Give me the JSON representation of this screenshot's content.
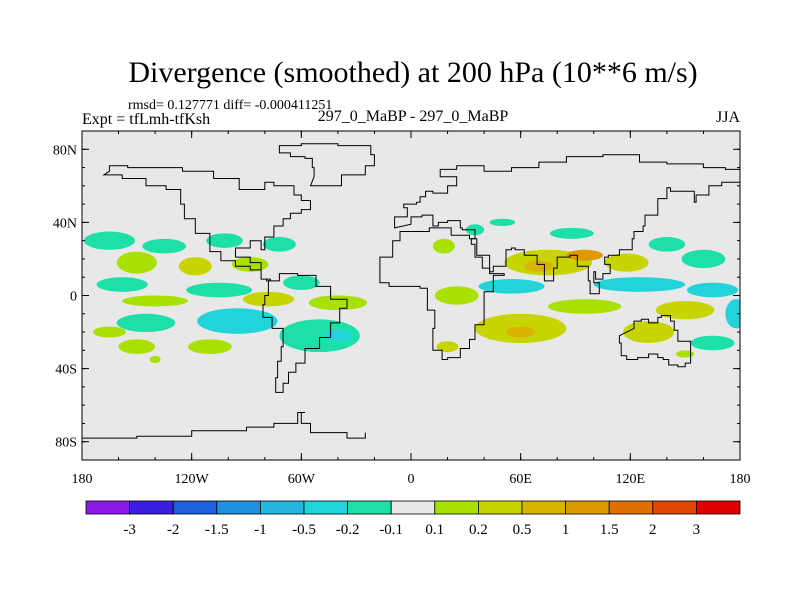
{
  "chart_data": {
    "type": "heatmap",
    "title": "Divergence (smoothed) at 200 hPa (10**6 m/s)",
    "stats_line": "rmsd= 0.127771 diff= -0.000411251",
    "expt_label": "Expt = tfLmh-tfKsh",
    "case_label": "297_0_MaBP - 297_0_MaBP",
    "season": "JJA",
    "x_range": [
      -180,
      180
    ],
    "y_range": [
      -90,
      90
    ],
    "x_ticks": [
      {
        "value": -180,
        "label": "180"
      },
      {
        "value": -120,
        "label": "120W"
      },
      {
        "value": -60,
        "label": "60W"
      },
      {
        "value": 0,
        "label": "0"
      },
      {
        "value": 60,
        "label": "60E"
      },
      {
        "value": 120,
        "label": "120E"
      },
      {
        "value": 180,
        "label": "180"
      }
    ],
    "y_ticks": [
      {
        "value": 80,
        "label": "80N"
      },
      {
        "value": 40,
        "label": "40N"
      },
      {
        "value": 0,
        "label": "0"
      },
      {
        "value": -40,
        "label": "40S"
      },
      {
        "value": -80,
        "label": "80S"
      }
    ],
    "colorbar": {
      "colors": [
        "#8b1ae8",
        "#3b1fe0",
        "#1f5fe0",
        "#1f8fe0",
        "#22b6e0",
        "#22d4d9",
        "#1de0a8",
        "#e8e8e8",
        "#a8e000",
        "#c8d400",
        "#d8b400",
        "#e09800",
        "#e07000",
        "#e04800",
        "#e00000"
      ],
      "labels": [
        "-3",
        "-2",
        "-1.5",
        "-1",
        "-0.5",
        "-0.2",
        "-0.1",
        "0.1",
        "0.2",
        "0.5",
        "1",
        "1.5",
        "2",
        "3"
      ]
    },
    "blobs": [
      {
        "lon": -165,
        "lat": 30,
        "rlon": 14,
        "rlat": 5,
        "level": 6
      },
      {
        "lon": -135,
        "lat": 27,
        "rlon": 12,
        "rlat": 4,
        "level": 6
      },
      {
        "lon": -102,
        "lat": 30,
        "rlon": 10,
        "rlat": 4,
        "level": 6
      },
      {
        "lon": -72,
        "lat": 28,
        "rlon": 9,
        "rlat": 4,
        "level": 6
      },
      {
        "lon": -150,
        "lat": 18,
        "rlon": 11,
        "rlat": 6,
        "level": 8
      },
      {
        "lon": -118,
        "lat": 16,
        "rlon": 9,
        "rlat": 5,
        "level": 9
      },
      {
        "lon": -88,
        "lat": 17,
        "rlon": 10,
        "rlat": 4,
        "level": 8
      },
      {
        "lon": -158,
        "lat": 6,
        "rlon": 14,
        "rlat": 4,
        "level": 6
      },
      {
        "lon": -105,
        "lat": 3,
        "rlon": 18,
        "rlat": 4,
        "level": 6
      },
      {
        "lon": -60,
        "lat": 7,
        "rlon": 10,
        "rlat": 4,
        "level": 6
      },
      {
        "lon": -140,
        "lat": -3,
        "rlon": 18,
        "rlat": 3,
        "level": 8
      },
      {
        "lon": -78,
        "lat": -2,
        "rlon": 14,
        "rlat": 4,
        "level": 9
      },
      {
        "lon": -40,
        "lat": -4,
        "rlon": 16,
        "rlat": 4,
        "level": 8
      },
      {
        "lon": -145,
        "lat": -15,
        "rlon": 16,
        "rlat": 5,
        "level": 6
      },
      {
        "lon": -95,
        "lat": -14,
        "rlon": 22,
        "rlat": 7,
        "level": 5
      },
      {
        "lon": -50,
        "lat": -22,
        "rlon": 22,
        "rlat": 9,
        "level": 6
      },
      {
        "lon": -40,
        "lat": -22,
        "rlon": 8,
        "rlat": 3,
        "level": 5
      },
      {
        "lon": -150,
        "lat": -28,
        "rlon": 10,
        "rlat": 4,
        "level": 8
      },
      {
        "lon": -110,
        "lat": -28,
        "rlon": 12,
        "rlat": 4,
        "level": 8
      },
      {
        "lon": -165,
        "lat": -20,
        "rlon": 9,
        "rlat": 3,
        "level": 8
      },
      {
        "lon": 18,
        "lat": 27,
        "rlon": 6,
        "rlat": 4,
        "level": 8
      },
      {
        "lon": 35,
        "lat": 36,
        "rlon": 5,
        "rlat": 3,
        "level": 6
      },
      {
        "lon": 50,
        "lat": 40,
        "rlon": 7,
        "rlat": 2,
        "level": 6
      },
      {
        "lon": 88,
        "lat": 34,
        "rlon": 12,
        "rlat": 3,
        "level": 6
      },
      {
        "lon": 75,
        "lat": 18,
        "rlon": 24,
        "rlat": 7,
        "level": 9
      },
      {
        "lon": 70,
        "lat": 16,
        "rlon": 8,
        "rlat": 3,
        "level": 10
      },
      {
        "lon": 118,
        "lat": 18,
        "rlon": 12,
        "rlat": 5,
        "level": 9
      },
      {
        "lon": 140,
        "lat": 28,
        "rlon": 10,
        "rlat": 4,
        "level": 6
      },
      {
        "lon": 160,
        "lat": 20,
        "rlon": 12,
        "rlat": 5,
        "level": 6
      },
      {
        "lon": 55,
        "lat": 5,
        "rlon": 18,
        "rlat": 4,
        "level": 5
      },
      {
        "lon": 125,
        "lat": 6,
        "rlon": 25,
        "rlat": 4,
        "level": 5
      },
      {
        "lon": 165,
        "lat": 3,
        "rlon": 14,
        "rlat": 4,
        "level": 5
      },
      {
        "lon": 25,
        "lat": 0,
        "rlon": 12,
        "rlat": 5,
        "level": 8
      },
      {
        "lon": 95,
        "lat": -6,
        "rlon": 20,
        "rlat": 4,
        "level": 8
      },
      {
        "lon": 150,
        "lat": -8,
        "rlon": 16,
        "rlat": 5,
        "level": 9
      },
      {
        "lon": 60,
        "lat": -18,
        "rlon": 25,
        "rlat": 8,
        "level": 9
      },
      {
        "lon": 60,
        "lat": -20,
        "rlon": 8,
        "rlat": 3,
        "level": 10
      },
      {
        "lon": 130,
        "lat": -20,
        "rlon": 14,
        "rlat": 6,
        "level": 9
      },
      {
        "lon": 165,
        "lat": -26,
        "rlon": 12,
        "rlat": 4,
        "level": 6
      },
      {
        "lon": 178,
        "lat": -10,
        "rlon": 6,
        "rlat": 8,
        "level": 5
      },
      {
        "lon": 20,
        "lat": -28,
        "rlon": 6,
        "rlat": 3,
        "level": 9
      },
      {
        "lon": 150,
        "lat": -32,
        "rlon": 5,
        "rlat": 2,
        "level": 8
      },
      {
        "lon": -140,
        "lat": -35,
        "rlon": 3,
        "rlat": 2,
        "level": 8
      },
      {
        "lon": 95,
        "lat": 22,
        "rlon": 10,
        "rlat": 3,
        "level": 11
      }
    ],
    "coast_outlines": [
      {
        "name": "north-america",
        "points": [
          [
            -168,
            66
          ],
          [
            -158,
            64
          ],
          [
            -145,
            60
          ],
          [
            -134,
            58
          ],
          [
            -126,
            50
          ],
          [
            -124,
            42
          ],
          [
            -118,
            34
          ],
          [
            -110,
            24
          ],
          [
            -104,
            19
          ],
          [
            -96,
            16
          ],
          [
            -88,
            14
          ],
          [
            -82,
            9
          ],
          [
            -77,
            8
          ],
          [
            -79,
            9
          ],
          [
            -82,
            18
          ],
          [
            -88,
            21
          ],
          [
            -96,
            26
          ],
          [
            -88,
            30
          ],
          [
            -82,
            25
          ],
          [
            -80,
            27
          ],
          [
            -80,
            32
          ],
          [
            -75,
            38
          ],
          [
            -70,
            42
          ],
          [
            -66,
            45
          ],
          [
            -60,
            47
          ],
          [
            -55,
            52
          ],
          [
            -60,
            55
          ],
          [
            -64,
            60
          ],
          [
            -75,
            62
          ],
          [
            -80,
            58
          ],
          [
            -90,
            58
          ],
          [
            -94,
            64
          ],
          [
            -108,
            68
          ],
          [
            -125,
            70
          ],
          [
            -140,
            70
          ],
          [
            -155,
            71
          ],
          [
            -165,
            68
          ]
        ]
      },
      {
        "name": "south-america",
        "points": [
          [
            -78,
            8
          ],
          [
            -72,
            12
          ],
          [
            -62,
            11
          ],
          [
            -52,
            5
          ],
          [
            -44,
            -2
          ],
          [
            -35,
            -7
          ],
          [
            -39,
            -15
          ],
          [
            -44,
            -23
          ],
          [
            -50,
            -29
          ],
          [
            -58,
            -37
          ],
          [
            -63,
            -42
          ],
          [
            -67,
            -48
          ],
          [
            -70,
            -53
          ],
          [
            -74,
            -52
          ],
          [
            -74,
            -45
          ],
          [
            -73,
            -36
          ],
          [
            -71,
            -28
          ],
          [
            -70,
            -18
          ],
          [
            -76,
            -12
          ],
          [
            -81,
            -5
          ],
          [
            -80,
            0
          ],
          [
            -78,
            2
          ]
        ]
      },
      {
        "name": "africa",
        "points": [
          [
            -17,
            21
          ],
          [
            -10,
            30
          ],
          [
            -6,
            35
          ],
          [
            10,
            37
          ],
          [
            22,
            33
          ],
          [
            32,
            31
          ],
          [
            36,
            22
          ],
          [
            43,
            12
          ],
          [
            51,
            11
          ],
          [
            45,
            2
          ],
          [
            40,
            -4
          ],
          [
            40,
            -16
          ],
          [
            35,
            -24
          ],
          [
            32,
            -29
          ],
          [
            27,
            -34
          ],
          [
            20,
            -35
          ],
          [
            17,
            -30
          ],
          [
            12,
            -18
          ],
          [
            13,
            -8
          ],
          [
            9,
            -1
          ],
          [
            9,
            4
          ],
          [
            5,
            5
          ],
          [
            -4,
            5
          ],
          [
            -12,
            7
          ],
          [
            -17,
            14
          ]
        ]
      },
      {
        "name": "eurasia",
        "points": [
          [
            -9,
            37
          ],
          [
            -9,
            43
          ],
          [
            -2,
            48
          ],
          [
            -4,
            50
          ],
          [
            3,
            51
          ],
          [
            5,
            54
          ],
          [
            8,
            57
          ],
          [
            12,
            56
          ],
          [
            20,
            60
          ],
          [
            25,
            65
          ],
          [
            16,
            69
          ],
          [
            25,
            71
          ],
          [
            40,
            68
          ],
          [
            55,
            70
          ],
          [
            70,
            73
          ],
          [
            85,
            76
          ],
          [
            105,
            77
          ],
          [
            125,
            73
          ],
          [
            140,
            72
          ],
          [
            160,
            70
          ],
          [
            172,
            69
          ],
          [
            180,
            67
          ],
          [
            180,
            62
          ],
          [
            170,
            60
          ],
          [
            163,
            55
          ],
          [
            156,
            51
          ],
          [
            155,
            57
          ],
          [
            142,
            59
          ],
          [
            140,
            53
          ],
          [
            135,
            44
          ],
          [
            128,
            38
          ],
          [
            127,
            35
          ],
          [
            122,
            31
          ],
          [
            121,
            25
          ],
          [
            114,
            22
          ],
          [
            108,
            21
          ],
          [
            106,
            17
          ],
          [
            109,
            12
          ],
          [
            105,
            9
          ],
          [
            101,
            13
          ],
          [
            100,
            7
          ],
          [
            103,
            1
          ],
          [
            98,
            8
          ],
          [
            97,
            16
          ],
          [
            91,
            22
          ],
          [
            87,
            21
          ],
          [
            80,
            15
          ],
          [
            78,
            8
          ],
          [
            73,
            17
          ],
          [
            69,
            22
          ],
          [
            62,
            25
          ],
          [
            57,
            26
          ],
          [
            55,
            25
          ],
          [
            52,
            16
          ],
          [
            45,
            13
          ],
          [
            43,
            15
          ],
          [
            39,
            21
          ],
          [
            35,
            28
          ],
          [
            33,
            31
          ],
          [
            35,
            36
          ],
          [
            28,
            37
          ],
          [
            27,
            41
          ],
          [
            20,
            40
          ],
          [
            15,
            38
          ],
          [
            12,
            44
          ],
          [
            6,
            43
          ],
          [
            3,
            43
          ],
          [
            0,
            39
          ]
        ]
      },
      {
        "name": "australia",
        "points": [
          [
            114,
            -22
          ],
          [
            114,
            -26
          ],
          [
            115,
            -33
          ],
          [
            118,
            -35
          ],
          [
            124,
            -34
          ],
          [
            130,
            -32
          ],
          [
            135,
            -34
          ],
          [
            138,
            -35
          ],
          [
            141,
            -38
          ],
          [
            146,
            -39
          ],
          [
            150,
            -37
          ],
          [
            153,
            -30
          ],
          [
            153,
            -25
          ],
          [
            146,
            -19
          ],
          [
            144,
            -14
          ],
          [
            142,
            -11
          ],
          [
            137,
            -12
          ],
          [
            135,
            -15
          ],
          [
            130,
            -13
          ],
          [
            126,
            -14
          ],
          [
            122,
            -18
          ]
        ]
      },
      {
        "name": "greenland",
        "points": [
          [
            -55,
            60
          ],
          [
            -44,
            60
          ],
          [
            -38,
            66
          ],
          [
            -25,
            71
          ],
          [
            -20,
            77
          ],
          [
            -22,
            82
          ],
          [
            -40,
            83
          ],
          [
            -60,
            82
          ],
          [
            -72,
            78
          ],
          [
            -66,
            76
          ],
          [
            -58,
            75
          ],
          [
            -54,
            70
          ],
          [
            -53,
            65
          ]
        ]
      },
      {
        "name": "antarctica-peninsula",
        "points": [
          [
            -180,
            -78
          ],
          [
            -150,
            -77
          ],
          [
            -120,
            -74
          ],
          [
            -90,
            -72
          ],
          [
            -75,
            -70
          ],
          [
            -62,
            -64
          ],
          [
            -58,
            -64
          ],
          [
            -60,
            -70
          ],
          [
            -55,
            -75
          ],
          [
            -35,
            -78
          ],
          [
            -25,
            -75
          ]
        ]
      }
    ]
  }
}
